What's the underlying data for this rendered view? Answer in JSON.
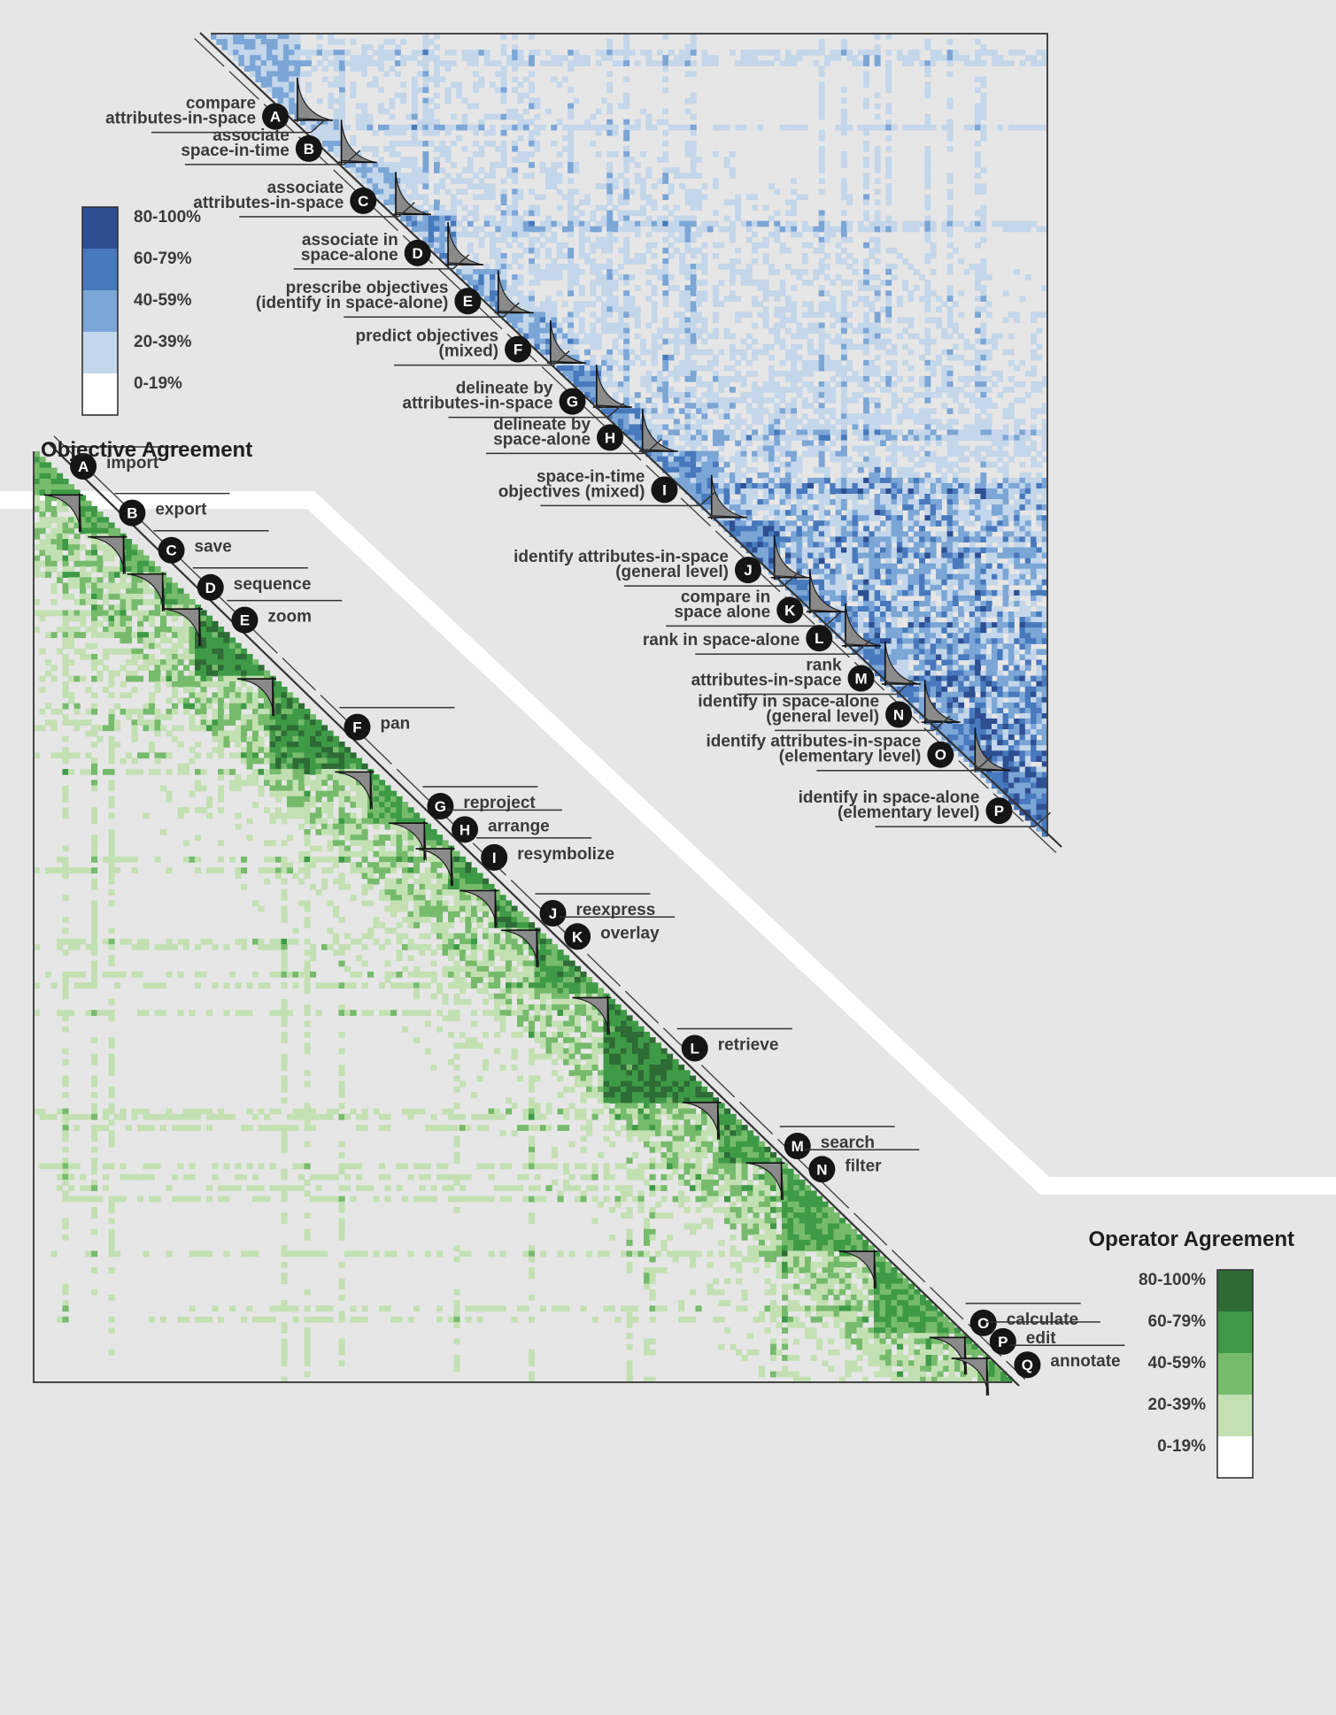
{
  "chart_data": [
    {
      "type": "heatmap",
      "title": "Objective Agreement",
      "color_scale": [
        {
          "label": "80-100%",
          "color": "#2e4f92"
        },
        {
          "label": "60-79%",
          "color": "#4879bd"
        },
        {
          "label": "40-59%",
          "color": "#7ba6d6"
        },
        {
          "label": "20-39%",
          "color": "#c4d6ea"
        },
        {
          "label": "0-19%",
          "color": "#ffffff"
        }
      ],
      "clusters": [
        {
          "id": "A",
          "label": "compare attributes-in-space",
          "lines": [
            "compare",
            "attributes-in-space"
          ],
          "position": 0.09,
          "agreement": 0.45
        },
        {
          "id": "B",
          "label": "associate space-in-time",
          "lines": [
            "associate",
            "space-in-time"
          ],
          "position": 0.13,
          "agreement": 0.35
        },
        {
          "id": "C",
          "label": "associate attributes-in-space",
          "lines": [
            "associate",
            "attributes-in-space"
          ],
          "position": 0.195,
          "agreement": 0.42
        },
        {
          "id": "D",
          "label": "associate in space-alone",
          "lines": [
            "associate in",
            "space-alone"
          ],
          "position": 0.26,
          "agreement": 0.55
        },
        {
          "id": "E",
          "label": "prescribe objectives (identify in space-alone)",
          "lines": [
            "prescribe objectives",
            "(identify in space-alone)"
          ],
          "position": 0.32,
          "agreement": 0.52
        },
        {
          "id": "F",
          "label": "predict objectives (mixed)",
          "lines": [
            "predict objectives",
            "(mixed)"
          ],
          "position": 0.38,
          "agreement": 0.5
        },
        {
          "id": "G",
          "label": "delineate by attributes-in-space",
          "lines": [
            "delineate by",
            "attributes-in-space"
          ],
          "position": 0.445,
          "agreement": 0.6
        },
        {
          "id": "H",
          "label": "delineate by space-alone",
          "lines": [
            "delineate by",
            "space-alone"
          ],
          "position": 0.49,
          "agreement": 0.62
        },
        {
          "id": "I",
          "label": "space-in-time objectives (mixed)",
          "lines": [
            "space-in-time",
            "objectives (mixed)"
          ],
          "position": 0.555,
          "agreement": 0.58
        },
        {
          "id": "J",
          "label": "identify attributes-in-space (general level)",
          "lines": [
            "identify attributes-in-space",
            "(general level)"
          ],
          "position": 0.655,
          "agreement": 0.65
        },
        {
          "id": "K",
          "label": "compare in space alone",
          "lines": [
            "compare in",
            "space alone"
          ],
          "position": 0.705,
          "agreement": 0.6
        },
        {
          "id": "L",
          "label": "rank in space-alone",
          "lines": [
            "rank in space-alone"
          ],
          "position": 0.74,
          "agreement": 0.55
        },
        {
          "id": "M",
          "label": "rank attributes-in-space",
          "lines": [
            "rank",
            "attributes-in-space"
          ],
          "position": 0.79,
          "agreement": 0.6
        },
        {
          "id": "N",
          "label": "identify in space-alone (general level)",
          "lines": [
            "identify in space-alone",
            "(general level)"
          ],
          "position": 0.835,
          "agreement": 0.62
        },
        {
          "id": "O",
          "label": "identify attributes-in-space (elementary level)",
          "lines": [
            "identify attributes-in-space",
            "(elementary level)"
          ],
          "position": 0.885,
          "agreement": 0.65
        },
        {
          "id": "P",
          "label": "identify in space-alone (elementary level)",
          "lines": [
            "identify in space-alone",
            "(elementary level)"
          ],
          "position": 0.955,
          "agreement": 0.72
        }
      ]
    },
    {
      "type": "heatmap",
      "title": "Operator Agreement",
      "color_scale": [
        {
          "label": "80-100%",
          "color": "#2e6b35"
        },
        {
          "label": "60-79%",
          "color": "#3e9a46"
        },
        {
          "label": "40-59%",
          "color": "#76bb6c"
        },
        {
          "label": "20-39%",
          "color": "#c3e0b3"
        },
        {
          "label": "0-19%",
          "color": "#ffffff"
        }
      ],
      "clusters": [
        {
          "id": "A",
          "label": "import",
          "position": 0.02,
          "agreement": 0.6
        },
        {
          "id": "B",
          "label": "export",
          "position": 0.07,
          "agreement": 0.65
        },
        {
          "id": "C",
          "label": "save",
          "position": 0.11,
          "agreement": 0.6
        },
        {
          "id": "D",
          "label": "sequence",
          "position": 0.15,
          "agreement": 0.65
        },
        {
          "id": "E",
          "label": "zoom",
          "position": 0.185,
          "agreement": 0.8
        },
        {
          "id": "F",
          "label": "pan",
          "position": 0.3,
          "agreement": 0.75
        },
        {
          "id": "G",
          "label": "reproject",
          "position": 0.385,
          "agreement": 0.62
        },
        {
          "id": "H",
          "label": "arrange",
          "position": 0.41,
          "agreement": 0.65
        },
        {
          "id": "I",
          "label": "resymbolize",
          "position": 0.44,
          "agreement": 0.7
        },
        {
          "id": "J",
          "label": "reexpress",
          "position": 0.5,
          "agreement": 0.7
        },
        {
          "id": "K",
          "label": "overlay",
          "position": 0.525,
          "agreement": 0.7
        },
        {
          "id": "L",
          "label": "retrieve",
          "position": 0.645,
          "agreement": 0.85
        },
        {
          "id": "M",
          "label": "search",
          "position": 0.75,
          "agreement": 0.7
        },
        {
          "id": "N",
          "label": "filter",
          "position": 0.775,
          "agreement": 0.65
        },
        {
          "id": "O",
          "label": "calculate",
          "position": 0.94,
          "agreement": 0.65
        },
        {
          "id": "P",
          "label": "edit",
          "position": 0.96,
          "agreement": 0.6
        },
        {
          "id": "Q",
          "label": "annotate",
          "position": 0.985,
          "agreement": 0.65
        }
      ]
    }
  ]
}
